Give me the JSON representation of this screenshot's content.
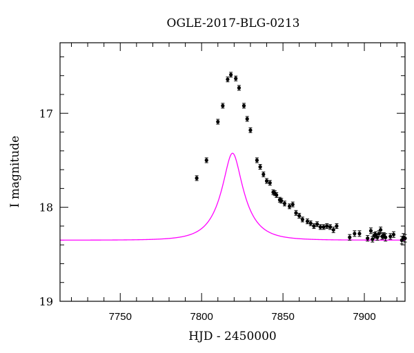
{
  "chart_data": {
    "type": "scatter",
    "title": "OGLE-2017-BLG-0213",
    "xlabel": "HJD - 2450000",
    "ylabel": "I magnitude",
    "xlim": [
      7713,
      7925
    ],
    "ylim": [
      19,
      16.25
    ],
    "y_inverted": true,
    "grid": false,
    "x_ticks": [
      7750,
      7800,
      7850,
      7900
    ],
    "x_tick_labels": [
      "7750",
      "7800",
      "7850",
      "7900"
    ],
    "y_ticks": [
      17,
      18,
      19
    ],
    "y_tick_labels": [
      "17",
      "18",
      "19"
    ],
    "colors": {
      "model": "#ff00ff",
      "points": "#000000"
    },
    "model": {
      "name": "",
      "color": "#ff00ff",
      "t0": 7819,
      "u0": 0.34,
      "tE": 15,
      "mbase": 18.35,
      "fs": 0.65
    },
    "series": [
      {
        "name": "",
        "x": [
          7797,
          7803,
          7810,
          7813,
          7816,
          7818,
          7821,
          7823,
          7826,
          7828,
          7830,
          7834,
          7836,
          7838,
          7840,
          7842,
          7844,
          7845,
          7846,
          7848,
          7849,
          7851,
          7854,
          7856,
          7858,
          7860,
          7862,
          7865,
          7867,
          7869,
          7871,
          7873,
          7875,
          7877,
          7879,
          7881,
          7883,
          7891,
          7894,
          7897,
          7902,
          7904,
          7905,
          7906,
          7907,
          7908,
          7909,
          7910,
          7911,
          7912,
          7913,
          7916,
          7918,
          7923,
          7924,
          7925
        ],
        "y": [
          17.69,
          17.5,
          17.09,
          16.92,
          16.64,
          16.59,
          16.63,
          16.73,
          16.92,
          17.06,
          17.18,
          17.5,
          17.57,
          17.65,
          17.72,
          17.74,
          17.84,
          17.85,
          17.87,
          17.92,
          17.93,
          17.96,
          17.99,
          17.97,
          18.06,
          18.09,
          18.13,
          18.15,
          18.17,
          18.2,
          18.18,
          18.21,
          18.21,
          18.2,
          18.21,
          18.24,
          18.2,
          18.32,
          18.28,
          18.28,
          18.33,
          18.25,
          18.34,
          18.3,
          18.29,
          18.32,
          18.28,
          18.24,
          18.31,
          18.3,
          18.32,
          18.31,
          18.29,
          18.35,
          18.32,
          18.33
        ],
        "yerr": [
          0.012,
          0.012,
          0.012,
          0.012,
          0.012,
          0.012,
          0.012,
          0.012,
          0.012,
          0.012,
          0.012,
          0.015,
          0.015,
          0.015,
          0.015,
          0.015,
          0.015,
          0.015,
          0.015,
          0.015,
          0.018,
          0.018,
          0.018,
          0.02,
          0.02,
          0.02,
          0.02,
          0.02,
          0.02,
          0.02,
          0.02,
          0.02,
          0.02,
          0.02,
          0.02,
          0.03,
          0.02,
          0.03,
          0.03,
          0.03,
          0.03,
          0.03,
          0.03,
          0.03,
          0.03,
          0.03,
          0.03,
          0.03,
          0.03,
          0.03,
          0.04,
          0.03,
          0.03,
          0.04,
          0.04,
          0.04
        ]
      }
    ]
  }
}
